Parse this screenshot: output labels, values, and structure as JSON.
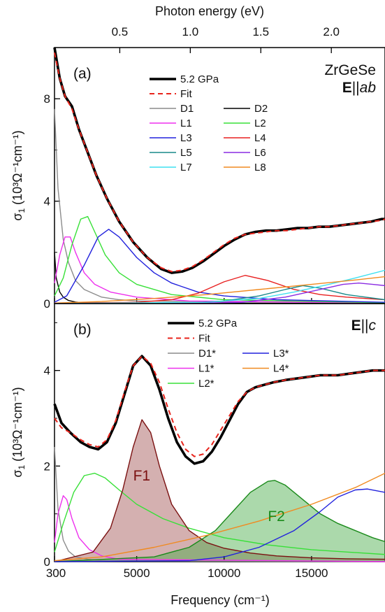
{
  "top_axis": {
    "label": "Photon energy (eV)",
    "ticks": [
      {
        "v": 0.5,
        "label": "0.5"
      },
      {
        "v": 1.0,
        "label": "1.0"
      },
      {
        "v": 1.5,
        "label": "1.5"
      },
      {
        "v": 2.0,
        "label": "2.0"
      }
    ]
  },
  "colors": {
    "data": "#000000",
    "fit": "#e8241c",
    "D1": "#8c8c8c",
    "D2": "#000000",
    "L1": "#ee30ee",
    "L2": "#38e038",
    "L3": "#2222dd",
    "L4": "#e82020",
    "L5": "#188a8a",
    "L6": "#8a2be2",
    "L7": "#3fe0f0",
    "L8": "#f08a20",
    "F1_line": "#7a1010",
    "F1_fill": "#a05050",
    "F2_line": "#1a8a1a",
    "F2_fill": "#44aa44",
    "F1_text": "#7a1010",
    "F2_text": "#1a8a1a"
  },
  "chart_data": [
    {
      "type": "line",
      "panel": "(a)",
      "annotation_material": "ZrGeSe",
      "annotation_bold": "E",
      "annotation_rest": "||",
      "annotation_italic": "ab",
      "xlabel": "Frequency (cm⁻¹)",
      "ylabel_main": "σ",
      "ylabel_sub": "1",
      "ylabel_unit": " (10³Ω⁻¹cm⁻¹)",
      "xlim": [
        300,
        19200
      ],
      "ylim": [
        0,
        10
      ],
      "yticks": [
        0,
        4,
        8
      ],
      "xticks": [
        300,
        5000,
        10000,
        15000
      ],
      "legend": [
        {
          "key": "data",
          "label": "5.2 GPa",
          "style": "data"
        },
        {
          "key": "fit",
          "label": "Fit",
          "style": "fit"
        },
        {
          "key": "D1",
          "label": "D1"
        },
        {
          "key": "D2",
          "label": "D2"
        },
        {
          "key": "L1",
          "label": "L1"
        },
        {
          "key": "L2",
          "label": "L2"
        },
        {
          "key": "L3",
          "label": "L3"
        },
        {
          "key": "L4",
          "label": "L4"
        },
        {
          "key": "L5",
          "label": "L5"
        },
        {
          "key": "L6",
          "label": "L6"
        },
        {
          "key": "L7",
          "label": "L7"
        },
        {
          "key": "L8",
          "label": "L8"
        }
      ],
      "series": [
        {
          "name": "5.2 GPa",
          "key": "data",
          "x": [
            300,
            600,
            900,
            1300,
            1700,
            2200,
            2700,
            3300,
            4000,
            4800,
            5600,
            6400,
            7000,
            7600,
            8200,
            8800,
            9400,
            10000,
            10600,
            11200,
            11800,
            12400,
            13000,
            13600,
            14200,
            14800,
            15400,
            16000,
            16600,
            17200,
            17800,
            18400,
            19000,
            19200
          ],
          "y": [
            10,
            8.8,
            8.1,
            7.7,
            6.8,
            5.9,
            5.0,
            4.1,
            3.2,
            2.4,
            1.8,
            1.35,
            1.2,
            1.25,
            1.4,
            1.65,
            1.95,
            2.25,
            2.5,
            2.7,
            2.8,
            2.85,
            2.85,
            2.9,
            2.95,
            2.95,
            3.0,
            3.0,
            3.05,
            3.1,
            3.15,
            3.2,
            3.3,
            3.3
          ]
        },
        {
          "name": "Fit",
          "key": "fit",
          "x": [
            300,
            600,
            900,
            1300,
            1700,
            2200,
            2700,
            3300,
            4000,
            4800,
            5600,
            6400,
            7000,
            7600,
            8200,
            8800,
            9400,
            10000,
            10600,
            11200,
            11800,
            12400,
            13000,
            13600,
            14200,
            14800,
            15400,
            16000,
            16600,
            17200,
            17800,
            18400,
            19000,
            19200
          ],
          "y": [
            9.8,
            8.8,
            8.1,
            7.6,
            6.8,
            5.9,
            5.0,
            4.1,
            3.2,
            2.4,
            1.8,
            1.4,
            1.25,
            1.3,
            1.45,
            1.7,
            2.0,
            2.3,
            2.55,
            2.7,
            2.75,
            2.8,
            2.85,
            2.85,
            2.9,
            2.95,
            3.0,
            3.0,
            3.05,
            3.1,
            3.15,
            3.2,
            3.25,
            3.3
          ]
        },
        {
          "name": "D1",
          "key": "D1",
          "x": [
            300,
            500,
            800,
            1100,
            1500,
            2000,
            3000,
            4000,
            5000,
            19200
          ],
          "y": [
            7.6,
            4.5,
            2.5,
            1.6,
            0.9,
            0.55,
            0.25,
            0.15,
            0.1,
            0.02
          ]
        },
        {
          "name": "D2",
          "key": "D2",
          "x": [
            300,
            400,
            600,
            800,
            1100,
            1500,
            2000,
            19200
          ],
          "y": [
            2.0,
            1.0,
            0.45,
            0.25,
            0.12,
            0.06,
            0.03,
            0.0
          ]
        },
        {
          "name": "L1",
          "key": "L1",
          "x": [
            300,
            600,
            900,
            1200,
            1500,
            2000,
            2600,
            3500,
            5000,
            8000,
            19200
          ],
          "y": [
            0.8,
            1.9,
            2.6,
            2.6,
            2.0,
            1.2,
            0.75,
            0.45,
            0.25,
            0.1,
            0.02
          ]
        },
        {
          "name": "L2",
          "key": "L2",
          "x": [
            300,
            800,
            1300,
            1800,
            2200,
            2600,
            3200,
            4000,
            5000,
            7000,
            10000,
            19200
          ],
          "y": [
            0.3,
            1.0,
            2.3,
            3.3,
            3.4,
            2.8,
            1.9,
            1.2,
            0.75,
            0.35,
            0.15,
            0.03
          ]
        },
        {
          "name": "L3",
          "key": "L3",
          "x": [
            300,
            1000,
            2000,
            2800,
            3400,
            4000,
            5000,
            6000,
            7000,
            8500,
            10000,
            13000,
            19200
          ],
          "y": [
            0.05,
            0.3,
            1.5,
            2.6,
            2.9,
            2.6,
            1.8,
            1.2,
            0.8,
            0.45,
            0.3,
            0.15,
            0.05
          ]
        },
        {
          "name": "L4",
          "key": "L4",
          "x": [
            300,
            5000,
            7000,
            8500,
            10000,
            11200,
            12500,
            14000,
            15500,
            17000,
            19200
          ],
          "y": [
            0,
            0.05,
            0.15,
            0.4,
            0.85,
            1.1,
            0.9,
            0.55,
            0.35,
            0.25,
            0.15
          ]
        },
        {
          "name": "L5",
          "key": "L5",
          "x": [
            300,
            8000,
            10000,
            12000,
            13500,
            14500,
            15500,
            17000,
            19200
          ],
          "y": [
            0,
            0.02,
            0.1,
            0.3,
            0.55,
            0.7,
            0.6,
            0.35,
            0.15
          ]
        },
        {
          "name": "L6",
          "key": "L6",
          "x": [
            300,
            8000,
            11000,
            13500,
            15500,
            16800,
            17700,
            18500,
            19200
          ],
          "y": [
            0,
            0.01,
            0.05,
            0.25,
            0.55,
            0.75,
            0.8,
            0.75,
            0.7
          ]
        },
        {
          "name": "L7",
          "key": "L7",
          "x": [
            300,
            9000,
            12000,
            14000,
            16000,
            17500,
            19200
          ],
          "y": [
            0,
            0.05,
            0.2,
            0.45,
            0.75,
            1.0,
            1.3
          ]
        },
        {
          "name": "L8",
          "key": "L8",
          "x": [
            300,
            3000,
            6000,
            9000,
            12000,
            15000,
            17500,
            19200
          ],
          "y": [
            0.02,
            0.08,
            0.2,
            0.35,
            0.55,
            0.75,
            0.92,
            1.05
          ]
        }
      ]
    },
    {
      "type": "area",
      "panel": "(b)",
      "annotation_bold": "E",
      "annotation_rest": "||",
      "annotation_italic": "c",
      "xlabel": "Frequency (cm⁻¹)",
      "ylabel_main": "σ",
      "ylabel_sub": "1",
      "ylabel_unit": " (10³Ω⁻¹cm⁻¹)",
      "xlim": [
        300,
        19200
      ],
      "ylim": [
        0,
        5.4
      ],
      "yticks": [
        0,
        2,
        4
      ],
      "xticks": [
        300,
        5000,
        10000,
        15000
      ],
      "xtick_labels": [
        "300",
        "5000",
        "10000",
        "15000"
      ],
      "filled_labels": [
        {
          "key": "F1",
          "label": "F1",
          "x": 4800,
          "y": 1.7
        },
        {
          "key": "F2",
          "label": "F2",
          "x": 12500,
          "y": 0.85
        }
      ],
      "legend": [
        {
          "key": "data",
          "label": "5.2 GPa",
          "style": "data"
        },
        {
          "key": "fit",
          "label": "Fit",
          "style": "fit"
        },
        {
          "key": "D1",
          "label": "D1*"
        },
        {
          "key": "L3",
          "label": "L3*"
        },
        {
          "key": "L1",
          "label": "L1*"
        },
        {
          "key": "L8",
          "label": "L4*"
        },
        {
          "key": "L2",
          "label": "L2*"
        }
      ],
      "series": [
        {
          "name": "5.2 GPa",
          "key": "data",
          "x": [
            300,
            700,
            1200,
            1800,
            2300,
            2800,
            3300,
            3800,
            4300,
            4800,
            5300,
            5800,
            6300,
            6800,
            7300,
            7800,
            8300,
            8800,
            9300,
            9800,
            10300,
            10800,
            11300,
            11800,
            12300,
            12800,
            13500,
            14500,
            15500,
            16500,
            17500,
            18500,
            19200
          ],
          "y": [
            3.3,
            2.9,
            2.7,
            2.5,
            2.4,
            2.35,
            2.5,
            2.9,
            3.5,
            4.1,
            4.3,
            4.1,
            3.6,
            3.0,
            2.5,
            2.2,
            2.05,
            2.1,
            2.3,
            2.6,
            2.95,
            3.3,
            3.55,
            3.65,
            3.7,
            3.75,
            3.8,
            3.85,
            3.9,
            3.9,
            3.95,
            4.0,
            4.0
          ]
        },
        {
          "name": "Fit",
          "key": "fit",
          "x": [
            300,
            700,
            1200,
            1800,
            2300,
            2800,
            3300,
            3800,
            4300,
            4800,
            5300,
            5800,
            6300,
            6800,
            7300,
            7800,
            8300,
            8800,
            9300,
            9800,
            10300,
            10800,
            11300,
            11800,
            12300,
            12800,
            13500,
            14500,
            15500,
            16500,
            17500,
            18500,
            19200
          ],
          "y": [
            3.0,
            2.8,
            2.7,
            2.55,
            2.45,
            2.4,
            2.55,
            2.95,
            3.55,
            4.1,
            4.3,
            4.15,
            3.75,
            3.2,
            2.7,
            2.35,
            2.2,
            2.25,
            2.45,
            2.75,
            3.05,
            3.35,
            3.55,
            3.65,
            3.7,
            3.75,
            3.8,
            3.85,
            3.9,
            3.9,
            3.95,
            4.0,
            4.0
          ]
        },
        {
          "name": "D1*",
          "key": "D1",
          "x": [
            300,
            500,
            800,
            1100,
            1500,
            2200,
            3000,
            19200
          ],
          "y": [
            2.4,
            1.1,
            0.45,
            0.22,
            0.1,
            0.05,
            0.02,
            0.0
          ]
        },
        {
          "name": "L1*",
          "key": "L1",
          "x": [
            300,
            500,
            800,
            1000,
            1300,
            1700,
            2300,
            3000,
            4000,
            19200
          ],
          "y": [
            0.4,
            1.0,
            1.38,
            1.3,
            0.9,
            0.5,
            0.25,
            0.12,
            0.05,
            0.0
          ]
        },
        {
          "name": "L2*",
          "key": "L2",
          "x": [
            300,
            800,
            1400,
            2000,
            2600,
            3200,
            4000,
            5000,
            6500,
            8000,
            10000,
            12500,
            15000,
            19200
          ],
          "y": [
            0.2,
            0.8,
            1.45,
            1.8,
            1.85,
            1.75,
            1.5,
            1.2,
            0.9,
            0.7,
            0.5,
            0.35,
            0.25,
            0.15
          ]
        },
        {
          "name": "F1",
          "key": "F1",
          "fill": true,
          "x": [
            300,
            2500,
            3500,
            4200,
            4800,
            5300,
            5800,
            6300,
            7000,
            8000,
            9000,
            10000,
            11500,
            13000,
            15000,
            17000,
            19200
          ],
          "y": [
            0.0,
            0.2,
            0.7,
            1.5,
            2.4,
            2.97,
            2.7,
            2.0,
            1.2,
            0.65,
            0.4,
            0.28,
            0.18,
            0.12,
            0.08,
            0.06,
            0.05
          ]
        },
        {
          "name": "F2",
          "key": "F2",
          "fill": true,
          "x": [
            300,
            6000,
            8000,
            9500,
            10500,
            11500,
            12500,
            12900,
            13500,
            14500,
            15500,
            16500,
            17500,
            18500,
            19200
          ],
          "y": [
            0.0,
            0.1,
            0.3,
            0.65,
            1.05,
            1.45,
            1.68,
            1.7,
            1.6,
            1.3,
            1.0,
            0.8,
            0.65,
            0.5,
            0.42
          ]
        },
        {
          "name": "L3*",
          "key": "L3",
          "x": [
            300,
            8000,
            10000,
            12000,
            14000,
            15500,
            16500,
            17500,
            18200,
            19200
          ],
          "y": [
            0.0,
            0.02,
            0.1,
            0.3,
            0.65,
            1.05,
            1.35,
            1.5,
            1.52,
            1.45
          ]
        },
        {
          "name": "L4*",
          "key": "L8",
          "x": [
            300,
            3000,
            6000,
            9000,
            12000,
            15000,
            17500,
            19200
          ],
          "y": [
            0.02,
            0.1,
            0.3,
            0.55,
            0.85,
            1.2,
            1.55,
            1.85
          ]
        }
      ]
    }
  ]
}
